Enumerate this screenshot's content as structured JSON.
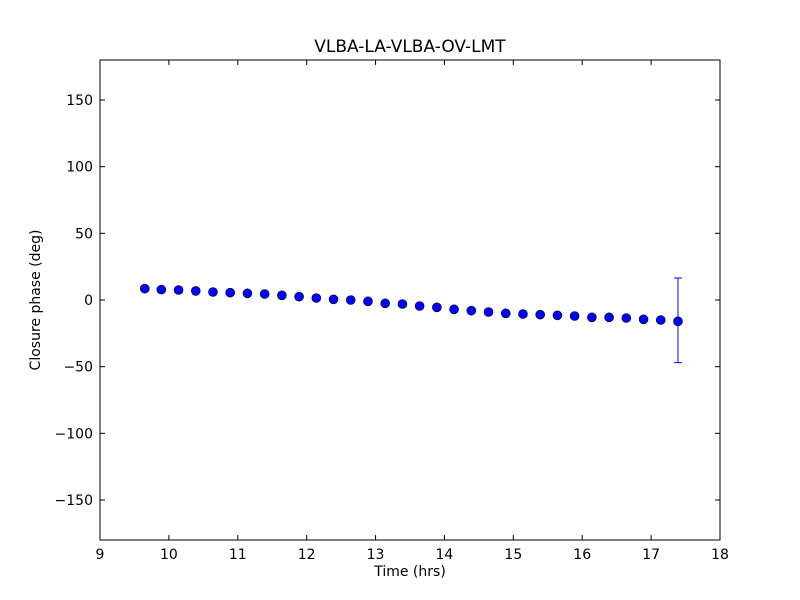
{
  "chart_data": {
    "type": "scatter",
    "title": "VLBA-LA-VLBA-OV-LMT",
    "xlabel": "Time (hrs)",
    "ylabel": "Closure phase (deg)",
    "xlim": [
      9,
      18
    ],
    "ylim": [
      -180,
      180
    ],
    "xticks": [
      "9",
      "10",
      "11",
      "12",
      "13",
      "14",
      "15",
      "16",
      "17",
      "18"
    ],
    "yticks": [
      "−150",
      "−100",
      "−50",
      "0",
      "50",
      "100",
      "150"
    ],
    "xtick_values": [
      9,
      10,
      11,
      12,
      13,
      14,
      15,
      16,
      17,
      18
    ],
    "ytick_values": [
      -150,
      -100,
      -50,
      0,
      50,
      100,
      150
    ],
    "grid": false,
    "marker_color": "#0000ff",
    "errorbar_color": "#0000ff",
    "points": [
      {
        "x": 9.65,
        "y": 8.5
      },
      {
        "x": 9.89,
        "y": 7.8
      },
      {
        "x": 10.14,
        "y": 7.5
      },
      {
        "x": 10.39,
        "y": 6.8
      },
      {
        "x": 10.64,
        "y": 6.0
      },
      {
        "x": 10.89,
        "y": 5.5
      },
      {
        "x": 11.14,
        "y": 5.0
      },
      {
        "x": 11.39,
        "y": 4.5
      },
      {
        "x": 11.64,
        "y": 3.5
      },
      {
        "x": 11.89,
        "y": 2.5
      },
      {
        "x": 12.14,
        "y": 1.5
      },
      {
        "x": 12.39,
        "y": 0.5
      },
      {
        "x": 12.64,
        "y": 0.0
      },
      {
        "x": 12.89,
        "y": -1.0
      },
      {
        "x": 13.14,
        "y": -2.5
      },
      {
        "x": 13.39,
        "y": -3.0
      },
      {
        "x": 13.64,
        "y": -4.5
      },
      {
        "x": 13.89,
        "y": -5.5
      },
      {
        "x": 14.14,
        "y": -7.0
      },
      {
        "x": 14.39,
        "y": -8.0
      },
      {
        "x": 14.64,
        "y": -9.0
      },
      {
        "x": 14.89,
        "y": -10.0
      },
      {
        "x": 15.14,
        "y": -10.5
      },
      {
        "x": 15.39,
        "y": -11.0
      },
      {
        "x": 15.64,
        "y": -11.5
      },
      {
        "x": 15.89,
        "y": -12.0
      },
      {
        "x": 16.14,
        "y": -13.0
      },
      {
        "x": 16.39,
        "y": -13.0
      },
      {
        "x": 16.64,
        "y": -13.5
      },
      {
        "x": 16.89,
        "y": -14.5
      },
      {
        "x": 17.14,
        "y": -15.0
      },
      {
        "x": 17.39,
        "y": -16.0
      }
    ],
    "errorbars": [
      {
        "x": 17.39,
        "y": -16.0,
        "ylow": -47.0,
        "yhigh": 16.5
      }
    ]
  }
}
